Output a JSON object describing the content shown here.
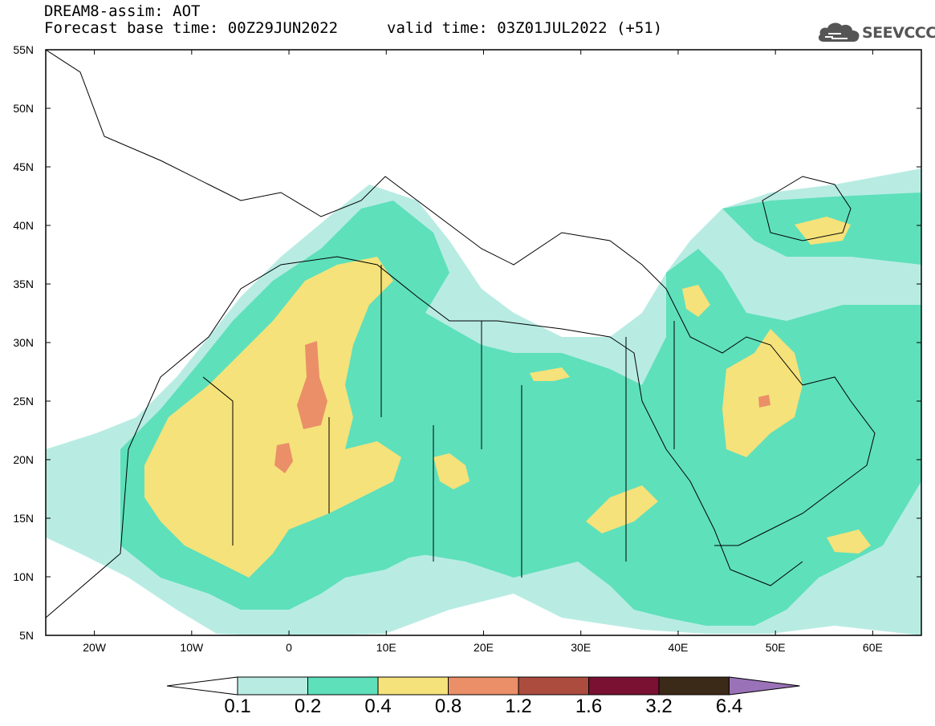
{
  "header": {
    "model": "DREAM8-assim: AOT",
    "base_time": "Forecast base time: 00Z29JUN2022",
    "valid_time": "valid time: 03Z01JUL2022 (+51)",
    "logo_text": "SEEVCCC",
    "logo_icon": "cloud-logo-icon"
  },
  "map": {
    "lat_labels": [
      "55N",
      "50N",
      "45N",
      "40N",
      "35N",
      "30N",
      "25N",
      "20N",
      "15N",
      "10N",
      "5N"
    ],
    "lon_labels": [
      "20W",
      "10W",
      "0",
      "10E",
      "20E",
      "30E",
      "40E",
      "50E",
      "60E"
    ],
    "lat_range": [
      5,
      55
    ],
    "lon_range": [
      -25,
      65
    ]
  },
  "colorbar": {
    "labels": [
      "0.1",
      "0.2",
      "0.4",
      "0.8",
      "1.2",
      "1.6",
      "3.2",
      "6.4"
    ],
    "colors": [
      "#ffffff",
      "#b8ece3",
      "#5ee0bb",
      "#f5e27a",
      "#ea8f68",
      "#ac4c3e",
      "#7a1132",
      "#3b2a18",
      "#9a72b8"
    ]
  }
}
